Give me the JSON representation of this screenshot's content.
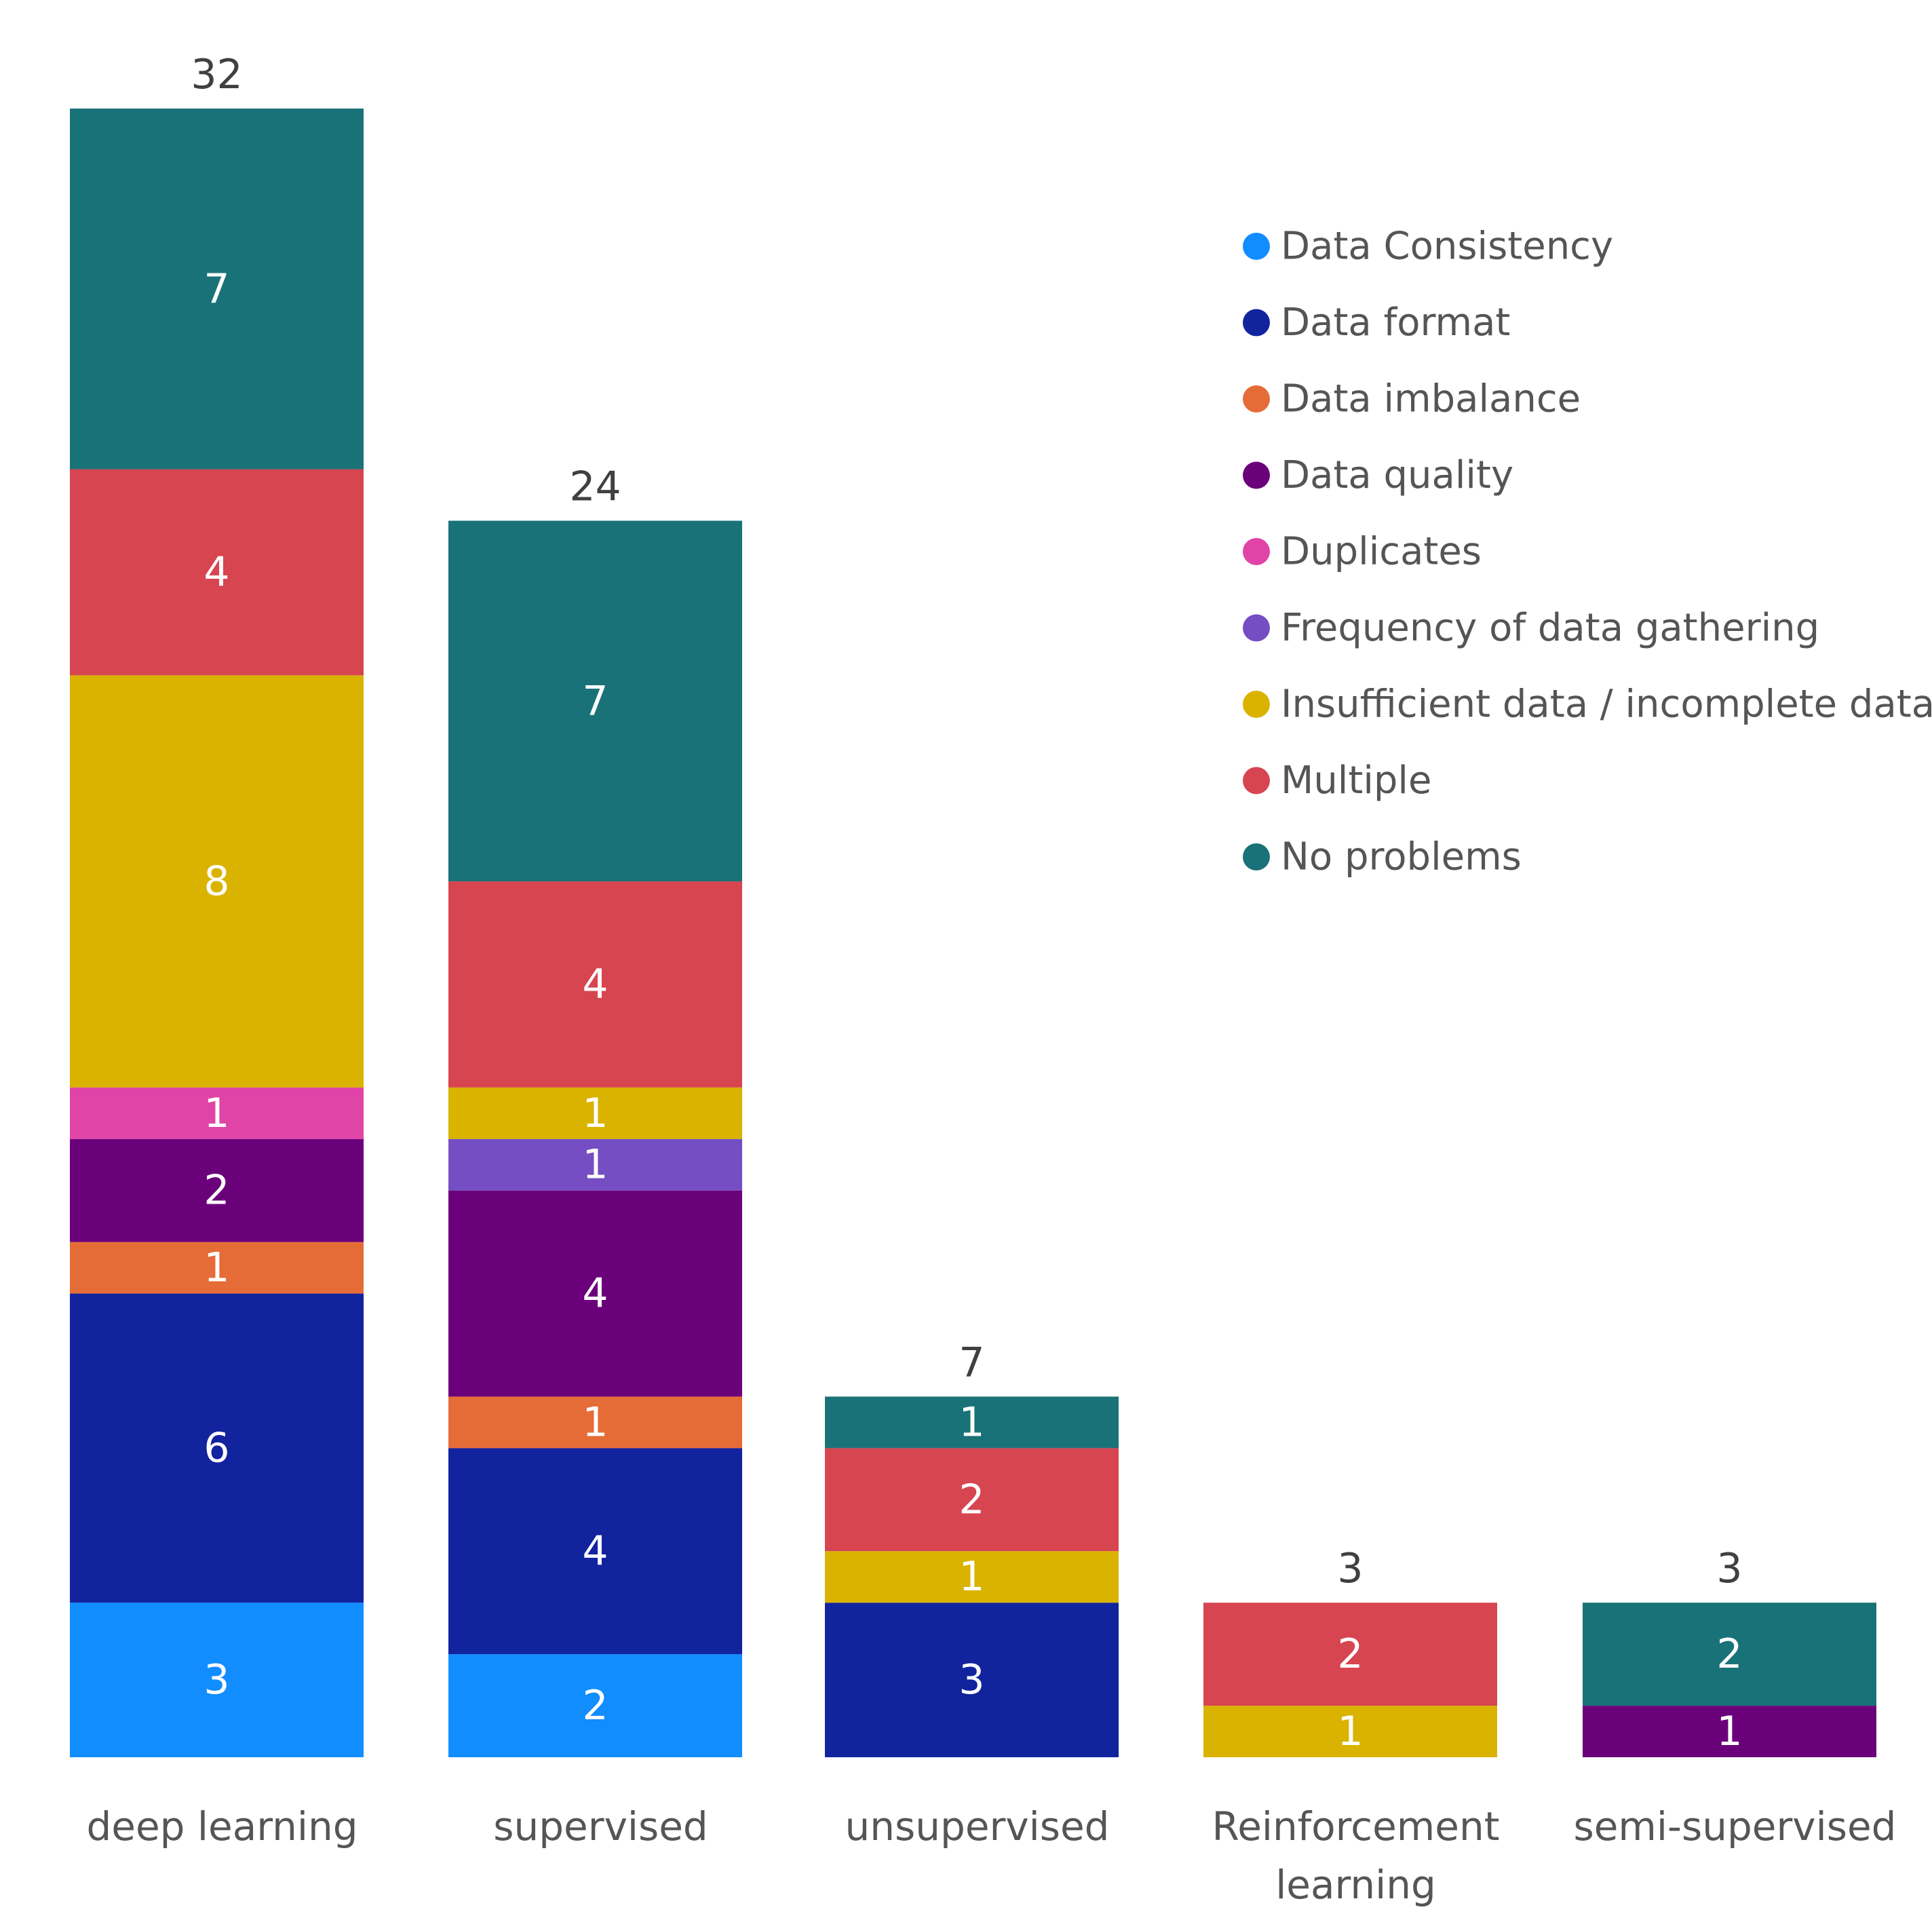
{
  "chart_data": {
    "type": "bar",
    "stacked": true,
    "title": "",
    "xlabel": "",
    "ylabel": "",
    "categories": [
      [
        "deep learning"
      ],
      [
        "supervised"
      ],
      [
        "unsupervised"
      ],
      [
        "Reinforcement",
        "learning"
      ],
      [
        "semi-supervised"
      ]
    ],
    "totals": [
      "32",
      "24",
      "7",
      "3",
      "3"
    ],
    "series": [
      {
        "name": "Data Consistency",
        "color": "#118DFF",
        "values": [
          3,
          2,
          0,
          0,
          0
        ]
      },
      {
        "name": "Data format",
        "color": "#12239E",
        "values": [
          6,
          4,
          3,
          0,
          0
        ]
      },
      {
        "name": "Data imbalance",
        "color": "#E66C37",
        "values": [
          1,
          1,
          0,
          0,
          0
        ]
      },
      {
        "name": "Data quality",
        "color": "#6B007B",
        "values": [
          2,
          4,
          0,
          0,
          1
        ]
      },
      {
        "name": "Duplicates",
        "color": "#E044A7",
        "values": [
          1,
          0,
          0,
          0,
          0
        ]
      },
      {
        "name": "Frequency of data gathering",
        "color": "#744EC2",
        "values": [
          0,
          1,
          0,
          0,
          0
        ]
      },
      {
        "name": "Insufficient data / incomplete data",
        "color": "#D9B300",
        "values": [
          8,
          1,
          1,
          1,
          0
        ]
      },
      {
        "name": "Multiple",
        "color": "#D64550",
        "values": [
          4,
          4,
          2,
          2,
          0
        ]
      },
      {
        "name": "No problems",
        "color": "#197278",
        "values": [
          7,
          7,
          1,
          0,
          2
        ]
      }
    ],
    "ylim": [
      0,
      32
    ],
    "grid": false,
    "legend_position": "top-right"
  }
}
